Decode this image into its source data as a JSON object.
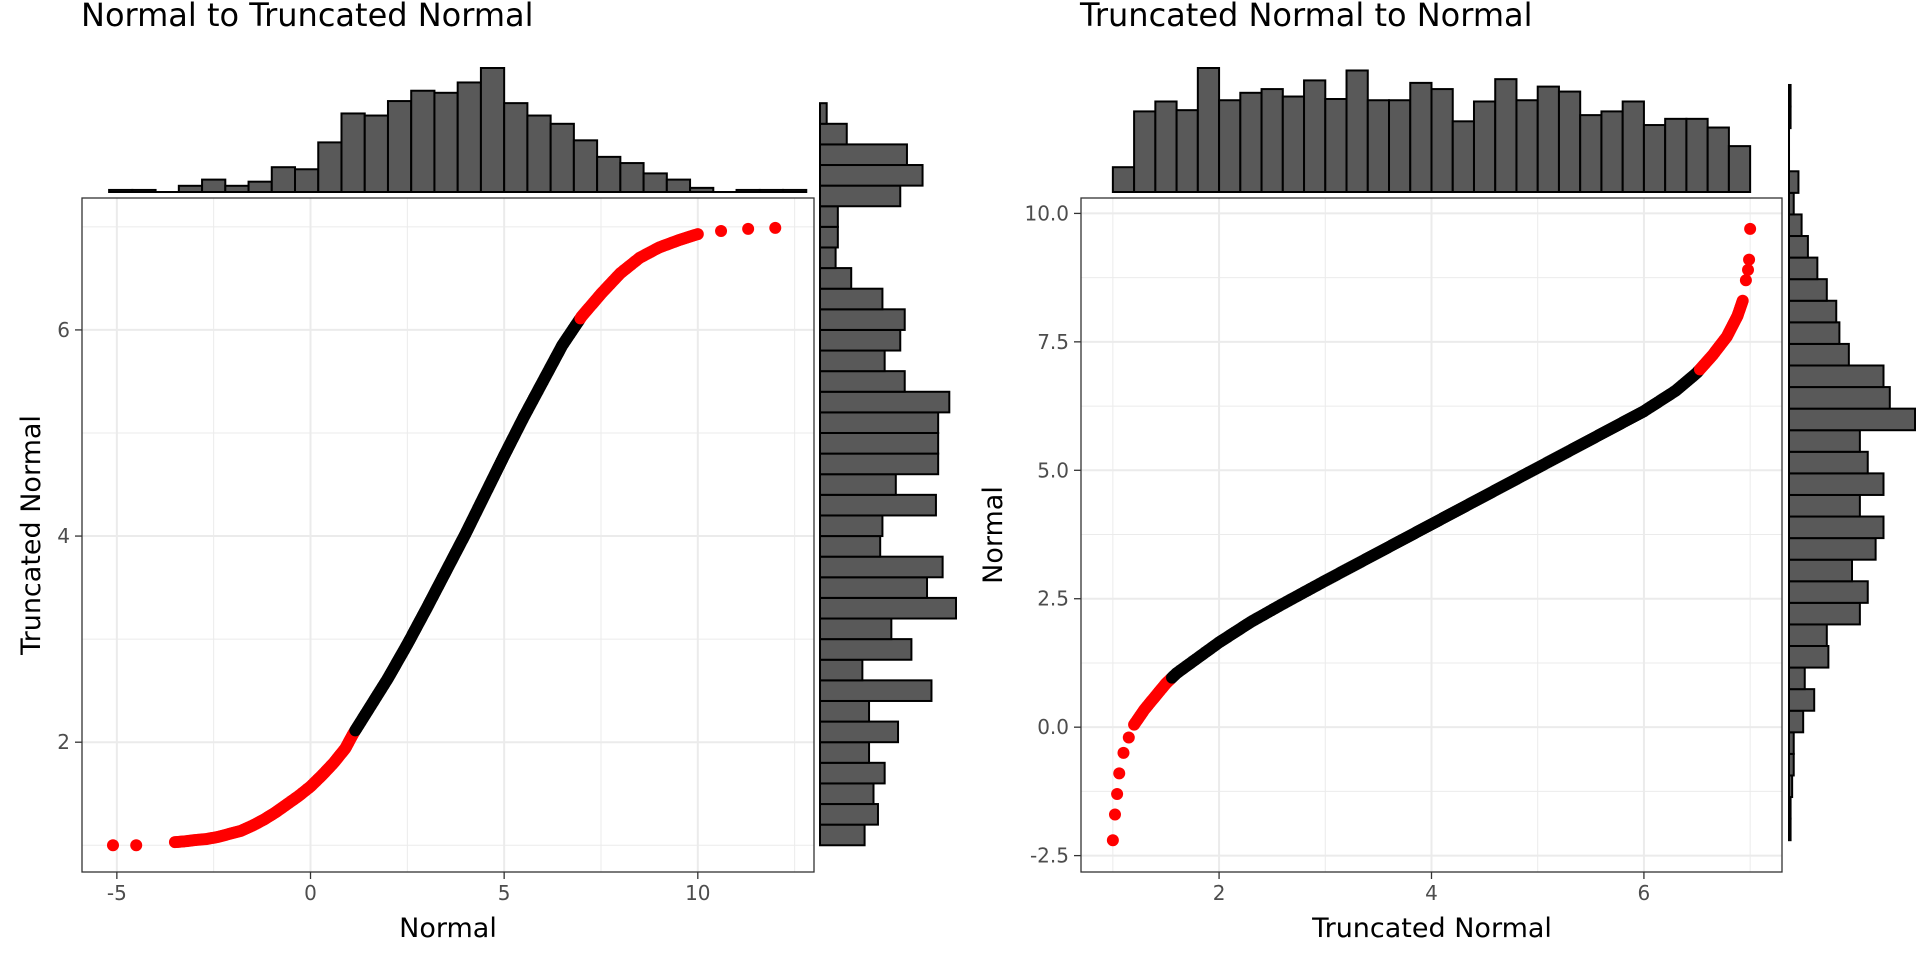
{
  "chart_data": [
    {
      "type": "scatter",
      "title": "Normal to Truncated Normal",
      "xlabel": "Normal",
      "ylabel": "Truncated Normal",
      "xlim": [
        -5.9,
        13.0
      ],
      "ylim": [
        0.76,
        7.28
      ],
      "xticks": [
        -5,
        0,
        5,
        10
      ],
      "xtick_labels": [
        "-5",
        "0",
        "5",
        "10"
      ],
      "yticks": [
        2,
        4,
        6
      ],
      "ytick_labels": [
        "2",
        "4",
        "6"
      ],
      "grid": true,
      "marginal_histograms": "top and right",
      "colors": {
        "core": "#000000",
        "tail": "#ff0000",
        "bar_fill": "#595959",
        "bar_stroke": "#000000",
        "grid": "#ebebeb"
      },
      "highlight_rule": "points with Truncated Normal < 2.1 or > 6.1 shown in red",
      "points": [
        [
          -5.1,
          1.0
        ],
        [
          -4.5,
          1.0
        ],
        [
          -3.5,
          1.03
        ],
        [
          -3.2,
          1.04
        ],
        [
          -3.0,
          1.05
        ],
        [
          -2.7,
          1.06
        ],
        [
          -2.4,
          1.08
        ],
        [
          -2.1,
          1.11
        ],
        [
          -1.8,
          1.14
        ],
        [
          -1.5,
          1.19
        ],
        [
          -1.2,
          1.25
        ],
        [
          -0.9,
          1.32
        ],
        [
          -0.6,
          1.4
        ],
        [
          -0.3,
          1.48
        ],
        [
          0.0,
          1.57
        ],
        [
          0.3,
          1.68
        ],
        [
          0.6,
          1.8
        ],
        [
          0.9,
          1.94
        ],
        [
          1.1,
          2.08
        ],
        [
          1.5,
          2.32
        ],
        [
          2.0,
          2.62
        ],
        [
          2.5,
          2.95
        ],
        [
          3.0,
          3.3
        ],
        [
          3.5,
          3.66
        ],
        [
          4.0,
          4.02
        ],
        [
          4.5,
          4.4
        ],
        [
          5.0,
          4.78
        ],
        [
          5.5,
          5.15
        ],
        [
          6.0,
          5.5
        ],
        [
          6.5,
          5.85
        ],
        [
          7.0,
          6.13
        ],
        [
          7.5,
          6.35
        ],
        [
          8.0,
          6.55
        ],
        [
          8.5,
          6.7
        ],
        [
          9.0,
          6.8
        ],
        [
          9.5,
          6.87
        ],
        [
          10.0,
          6.93
        ],
        [
          10.6,
          6.96
        ],
        [
          11.3,
          6.98
        ],
        [
          12.0,
          6.99
        ]
      ],
      "top_histogram": {
        "bin_edges_start": -5.2,
        "bin_width": 0.6,
        "counts": [
          1,
          1,
          0,
          3,
          6,
          3,
          5,
          12,
          11,
          24,
          38,
          37,
          44,
          49,
          48,
          53,
          60,
          43,
          37,
          33,
          25,
          17,
          14,
          9,
          6,
          2,
          0,
          1,
          1,
          1
        ]
      },
      "right_histogram": {
        "bin_edges_start": 1.0,
        "bin_width": 0.2,
        "counts": [
          20,
          26,
          24,
          29,
          22,
          35,
          22,
          50,
          19,
          41,
          32,
          61,
          48,
          55,
          27,
          28,
          52,
          34,
          53,
          53,
          53,
          58,
          38,
          29,
          36,
          38,
          28,
          14,
          7,
          8,
          8,
          36,
          46,
          39,
          12,
          3
        ]
      }
    },
    {
      "type": "scatter",
      "title": "Truncated Normal to Normal",
      "xlabel": "Truncated Normal",
      "ylabel": "Normal",
      "xlim": [
        0.7,
        7.3
      ],
      "ylim": [
        -2.78,
        10.3
      ],
      "xticks": [
        2,
        4,
        6
      ],
      "xtick_labels": [
        "2",
        "4",
        "6"
      ],
      "yticks": [
        -2.5,
        0.0,
        2.5,
        5.0,
        7.5,
        10.0
      ],
      "ytick_labels": [
        "-2.5",
        "0.0",
        "2.5",
        "5.0",
        "7.5",
        "10.0"
      ],
      "grid": true,
      "marginal_histograms": "top and right",
      "colors": {
        "core": "#000000",
        "tail": "#ff0000",
        "bar_fill": "#595959",
        "bar_stroke": "#000000",
        "grid": "#ebebeb"
      },
      "highlight_rule": "points with Normal < 0.95 or > 6.95 shown in red",
      "points": [
        [
          1.0,
          -2.2
        ],
        [
          1.02,
          -1.7
        ],
        [
          1.04,
          -1.3
        ],
        [
          1.06,
          -0.9
        ],
        [
          1.1,
          -0.5
        ],
        [
          1.15,
          -0.2
        ],
        [
          1.2,
          0.05
        ],
        [
          1.3,
          0.35
        ],
        [
          1.4,
          0.6
        ],
        [
          1.5,
          0.85
        ],
        [
          1.6,
          1.05
        ],
        [
          1.8,
          1.35
        ],
        [
          2.0,
          1.65
        ],
        [
          2.3,
          2.05
        ],
        [
          2.6,
          2.4
        ],
        [
          3.0,
          2.85
        ],
        [
          3.5,
          3.4
        ],
        [
          4.0,
          3.95
        ],
        [
          4.5,
          4.5
        ],
        [
          5.0,
          5.05
        ],
        [
          5.5,
          5.6
        ],
        [
          6.0,
          6.15
        ],
        [
          6.3,
          6.55
        ],
        [
          6.5,
          6.9
        ],
        [
          6.65,
          7.25
        ],
        [
          6.78,
          7.6
        ],
        [
          6.88,
          8.0
        ],
        [
          6.93,
          8.3
        ],
        [
          6.96,
          8.7
        ],
        [
          6.98,
          8.9
        ],
        [
          6.99,
          9.1
        ],
        [
          7.0,
          9.7
        ]
      ],
      "top_histogram": {
        "bin_edges_start": 1.0,
        "bin_width": 0.2,
        "counts": [
          20,
          65,
          73,
          66,
          100,
          74,
          80,
          83,
          77,
          90,
          75,
          98,
          74,
          74,
          88,
          83,
          57,
          73,
          91,
          74,
          85,
          81,
          62,
          65,
          73,
          54,
          59,
          59,
          52,
          37
        ]
      },
      "right_histogram": {
        "bin_edges_start": -2.2,
        "bin_width": 0.42,
        "counts": [
          1,
          1,
          2,
          3,
          3,
          9,
          16,
          10,
          25,
          24,
          45,
          50,
          40,
          55,
          60,
          45,
          60,
          50,
          45,
          80,
          64,
          60,
          38,
          32,
          30,
          24,
          18,
          12,
          8,
          3,
          6,
          0,
          0,
          1,
          1
        ]
      }
    }
  ]
}
